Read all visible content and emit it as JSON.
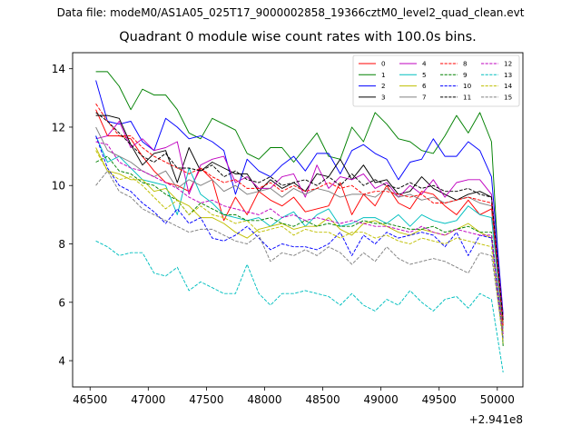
{
  "figure": {
    "suptitle": "Data file: modeM0/AS1A05_025T17_9000002858_19366cztM0_level2_quad_clean.evt",
    "title": "Quadrant 0 module wise count rates with 100.0s bins."
  },
  "chart_data": {
    "type": "line",
    "title": "Quadrant 0 module wise count rates with 100.0s bins.",
    "xlabel": "",
    "ylabel": "",
    "x_offset_label": "+2.941e8",
    "xlim": [
      46350,
      50220
    ],
    "ylim": [
      3.1,
      14.55
    ],
    "xticks": [
      46500,
      47000,
      47500,
      48000,
      48500,
      49000,
      49500,
      50000
    ],
    "xtick_labels": [
      "46500",
      "47000",
      "47500",
      "48000",
      "48500",
      "49000",
      "49500",
      "50000"
    ],
    "yticks": [
      4,
      6,
      8,
      10,
      12,
      14
    ],
    "ytick_labels": [
      "4",
      "6",
      "8",
      "10",
      "12",
      "14"
    ],
    "grid": false,
    "legend_position": "top-right",
    "legend_columns": 4,
    "x": [
      46550,
      46650,
      46750,
      46850,
      46950,
      47050,
      47150,
      47250,
      47350,
      47450,
      47550,
      47650,
      47750,
      47850,
      47950,
      48050,
      48150,
      48250,
      48350,
      48450,
      48550,
      48650,
      48750,
      48850,
      48950,
      49050,
      49150,
      49250,
      49350,
      49450,
      49550,
      49650,
      49750,
      49850,
      49950,
      50050
    ],
    "series": [
      {
        "name": "0",
        "color": "#ff0000",
        "style": "solid",
        "values": [
          12.6,
          11.7,
          11.7,
          11.6,
          11.0,
          10.5,
          10.1,
          10.0,
          9.8,
          10.6,
          10.2,
          8.8,
          9.6,
          9.0,
          9.8,
          9.5,
          9.3,
          9.6,
          9.1,
          9.2,
          9.3,
          10.1,
          9.0,
          9.7,
          9.3,
          10.0,
          9.4,
          9.2,
          9.8,
          9.7,
          9.3,
          9.0,
          9.5,
          9.0,
          9.2,
          5.2
        ]
      },
      {
        "name": "1",
        "color": "#008000",
        "style": "solid",
        "values": [
          13.9,
          13.9,
          13.4,
          12.6,
          13.3,
          13.1,
          13.1,
          12.6,
          11.8,
          11.6,
          12.3,
          12.1,
          11.9,
          11.1,
          10.9,
          11.3,
          11.3,
          10.8,
          11.3,
          11.8,
          11.0,
          10.9,
          12.0,
          11.5,
          12.5,
          12.1,
          11.6,
          11.5,
          11.2,
          11.1,
          11.7,
          12.4,
          11.8,
          12.5,
          11.5,
          4.5
        ]
      },
      {
        "name": "2",
        "color": "#0000ff",
        "style": "solid",
        "values": [
          13.6,
          12.2,
          12.1,
          12.2,
          11.5,
          11.2,
          12.3,
          12.0,
          11.6,
          11.7,
          11.5,
          11.2,
          9.7,
          10.9,
          10.5,
          10.3,
          10.7,
          11.0,
          10.5,
          11.1,
          11.1,
          10.4,
          11.2,
          11.4,
          11.1,
          10.9,
          10.2,
          10.8,
          10.9,
          11.6,
          11.0,
          11.0,
          11.5,
          11.2,
          10.3,
          5.6
        ]
      },
      {
        "name": "3",
        "color": "#000000",
        "style": "solid",
        "values": [
          12.4,
          12.4,
          12.3,
          11.4,
          10.7,
          11.1,
          11.2,
          10.1,
          11.3,
          10.5,
          10.8,
          10.6,
          10.4,
          10.4,
          9.8,
          10.2,
          9.9,
          10.1,
          9.8,
          10.4,
          10.3,
          10.9,
          10.2,
          10.7,
          10.1,
          10.2,
          9.7,
          9.8,
          10.3,
          9.9,
          9.7,
          9.5,
          9.7,
          9.8,
          9.6,
          5.3
        ]
      },
      {
        "name": "4",
        "color": "#bf00bf",
        "style": "solid",
        "values": [
          11.6,
          11.7,
          12.2,
          11.3,
          11.6,
          11.2,
          11.3,
          11.5,
          9.7,
          10.7,
          10.9,
          11.0,
          10.1,
          10.3,
          9.9,
          9.9,
          10.3,
          10.4,
          9.6,
          10.7,
          9.9,
          10.3,
          10.2,
          10.4,
          9.9,
          10.1,
          9.6,
          10.0,
          9.7,
          10.2,
          9.6,
          10.1,
          10.2,
          10.2,
          9.7,
          5.5
        ]
      },
      {
        "name": "5",
        "color": "#00bfbf",
        "style": "solid",
        "values": [
          11.7,
          10.8,
          11.0,
          10.6,
          10.2,
          10.1,
          10.0,
          9.0,
          10.6,
          9.7,
          9.4,
          9.0,
          8.9,
          8.8,
          8.9,
          8.6,
          8.9,
          9.1,
          8.6,
          9.0,
          9.2,
          8.6,
          8.7,
          8.9,
          8.9,
          8.7,
          9.0,
          8.6,
          9.0,
          8.8,
          8.7,
          8.8,
          9.3,
          9.0,
          8.9,
          5.1
        ]
      },
      {
        "name": "6",
        "color": "#bfbf00",
        "style": "solid",
        "values": [
          11.3,
          10.5,
          10.4,
          10.2,
          10.2,
          9.8,
          9.9,
          9.5,
          9.3,
          8.9,
          8.9,
          8.7,
          8.4,
          8.2,
          8.5,
          8.6,
          8.7,
          8.5,
          8.6,
          8.6,
          8.9,
          8.5,
          8.3,
          8.7,
          8.8,
          8.6,
          8.4,
          8.3,
          8.5,
          8.4,
          8.3,
          8.5,
          8.7,
          8.4,
          8.2,
          5.0
        ]
      },
      {
        "name": "7",
        "color": "#808080",
        "style": "solid",
        "values": [
          12.0,
          11.2,
          11.0,
          10.8,
          10.5,
          10.3,
          10.5,
          9.9,
          10.2,
          10.0,
          10.2,
          9.8,
          10.0,
          9.7,
          9.8,
          9.9,
          9.6,
          9.9,
          9.7,
          9.9,
          9.8,
          9.6,
          9.7,
          9.7,
          9.6,
          9.9,
          9.6,
          9.7,
          9.5,
          9.6,
          9.4,
          9.5,
          9.6,
          9.4,
          9.3,
          5.3
        ]
      },
      {
        "name": "8",
        "color": "#ff0000",
        "style": "dashed",
        "values": [
          12.8,
          12.2,
          11.7,
          11.7,
          11.3,
          11.0,
          10.8,
          10.6,
          10.4,
          10.6,
          10.3,
          10.1,
          10.2,
          9.9,
          9.9,
          10.1,
          9.8,
          10.0,
          9.8,
          9.9,
          10.1,
          9.9,
          10.0,
          9.7,
          9.8,
          9.8,
          9.7,
          9.6,
          9.7,
          9.4,
          9.4,
          9.5,
          9.6,
          9.5,
          9.4,
          5.2
        ]
      },
      {
        "name": "9",
        "color": "#008000",
        "style": "dashed",
        "values": [
          10.8,
          11.0,
          10.5,
          10.4,
          10.1,
          10.0,
          9.7,
          9.5,
          9.0,
          9.4,
          9.2,
          9.0,
          9.0,
          8.8,
          8.8,
          8.9,
          8.7,
          8.6,
          8.8,
          8.6,
          8.7,
          8.6,
          8.6,
          8.8,
          8.7,
          8.7,
          8.6,
          8.5,
          8.5,
          8.6,
          8.4,
          8.5,
          8.6,
          8.4,
          8.4,
          4.8
        ]
      },
      {
        "name": "10",
        "color": "#0000ff",
        "style": "dashed",
        "values": [
          11.7,
          10.6,
          10.0,
          9.8,
          9.4,
          9.1,
          8.7,
          9.2,
          8.7,
          8.9,
          8.2,
          8.1,
          8.3,
          8.6,
          8.2,
          7.8,
          8.0,
          7.9,
          7.9,
          7.8,
          8.0,
          8.4,
          7.6,
          8.3,
          8.0,
          8.4,
          8.2,
          8.3,
          8.4,
          8.3,
          7.9,
          8.4,
          7.6,
          8.3,
          8.2,
          4.7
        ]
      },
      {
        "name": "11",
        "color": "#000000",
        "style": "dashed",
        "values": [
          12.5,
          12.2,
          11.8,
          11.4,
          11.0,
          10.8,
          11.1,
          10.6,
          10.6,
          10.5,
          10.7,
          10.3,
          10.5,
          10.2,
          10.1,
          10.3,
          10.0,
          10.1,
          10.2,
          10.0,
          10.3,
          10.0,
          10.4,
          10.0,
          10.2,
          10.0,
          9.9,
          10.1,
          9.9,
          10.0,
          9.8,
          9.8,
          9.9,
          9.7,
          9.6,
          5.4
        ]
      },
      {
        "name": "12",
        "color": "#bf00bf",
        "style": "dashed",
        "values": [
          11.5,
          11.4,
          10.8,
          10.6,
          10.5,
          10.3,
          10.1,
          9.9,
          9.6,
          9.4,
          9.5,
          9.3,
          9.2,
          9.1,
          9.0,
          9.2,
          8.9,
          9.0,
          8.8,
          8.9,
          8.8,
          8.7,
          8.8,
          8.7,
          8.6,
          8.6,
          8.5,
          8.4,
          8.6,
          8.4,
          8.3,
          8.5,
          8.4,
          8.3,
          8.3,
          4.9
        ]
      },
      {
        "name": "13",
        "color": "#00bfbf",
        "style": "dashed",
        "values": [
          8.1,
          7.9,
          7.6,
          7.7,
          7.7,
          7.0,
          6.9,
          7.2,
          6.4,
          6.7,
          6.5,
          6.3,
          6.3,
          7.3,
          6.3,
          5.9,
          6.3,
          6.3,
          6.4,
          6.3,
          6.2,
          5.9,
          6.3,
          5.9,
          5.7,
          6.1,
          5.9,
          6.4,
          6.0,
          5.7,
          6.1,
          6.2,
          5.8,
          6.3,
          6.1,
          3.6
        ]
      },
      {
        "name": "14",
        "color": "#bfbf00",
        "style": "dashed",
        "values": [
          11.2,
          10.5,
          10.2,
          10.3,
          10.0,
          9.6,
          9.2,
          9.5,
          9.0,
          9.3,
          9.0,
          8.9,
          8.7,
          8.8,
          8.4,
          8.5,
          8.6,
          8.3,
          8.5,
          8.4,
          8.4,
          8.2,
          8.4,
          8.4,
          8.2,
          8.3,
          8.1,
          8.0,
          8.2,
          8.1,
          8.0,
          8.2,
          8.1,
          8.0,
          7.9,
          4.6
        ]
      },
      {
        "name": "15",
        "color": "#808080",
        "style": "dashed",
        "values": [
          10.0,
          10.5,
          9.8,
          9.6,
          9.2,
          9.0,
          8.8,
          8.6,
          8.4,
          8.5,
          8.5,
          8.3,
          8.1,
          8.0,
          8.3,
          7.4,
          7.7,
          7.6,
          7.8,
          7.6,
          7.9,
          7.7,
          7.3,
          7.7,
          7.4,
          7.9,
          7.5,
          7.3,
          7.4,
          7.5,
          7.4,
          7.2,
          7.0,
          7.7,
          7.6,
          4.8
        ]
      }
    ]
  }
}
